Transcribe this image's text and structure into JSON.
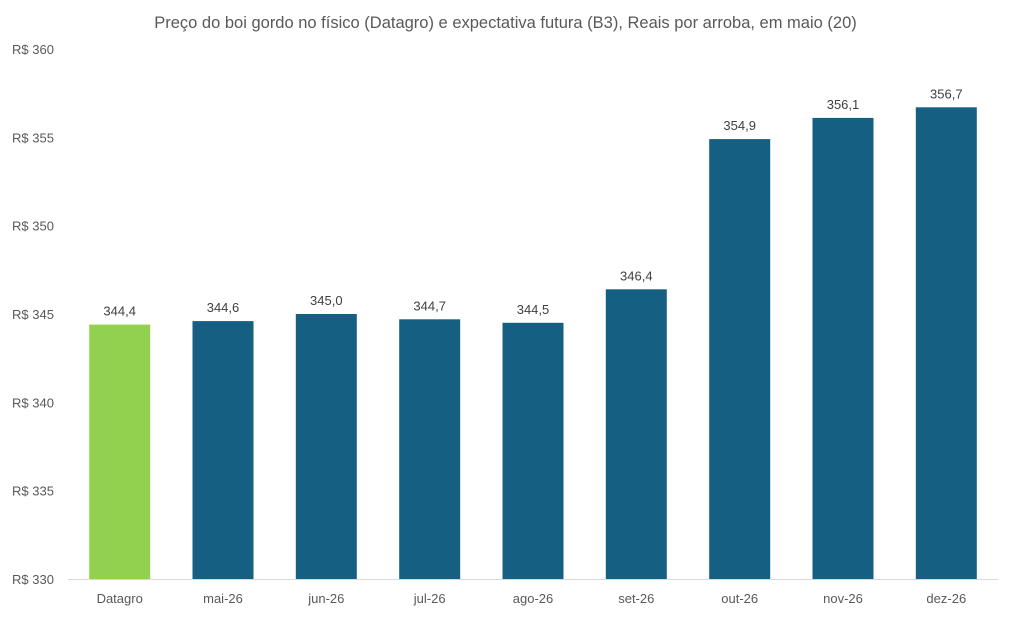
{
  "chart_data": {
    "type": "bar",
    "title": "Preço do boi gordo no físico (Datagro)  e expectativa futura (B3), Reais por arroba, em maio (20)",
    "categories": [
      "Datagro",
      "mai-26",
      "jun-26",
      "jul-26",
      "ago-26",
      "set-26",
      "out-26",
      "nov-26",
      "dez-26"
    ],
    "values": [
      344.4,
      344.6,
      345.0,
      344.7,
      344.5,
      346.4,
      354.9,
      356.1,
      356.7
    ],
    "data_labels": [
      "344,4",
      "344,6",
      "345,0",
      "344,7",
      "344,5",
      "346,4",
      "354,9",
      "356,1",
      "356,7"
    ],
    "ylim": [
      330,
      360
    ],
    "yticks": [
      330,
      335,
      340,
      345,
      350,
      355,
      360
    ],
    "ytick_labels": [
      "R$ 330",
      "R$ 335",
      "R$ 340",
      "R$ 345",
      "R$ 350",
      "R$ 355",
      "R$ 360"
    ],
    "xlabel": "",
    "ylabel": "",
    "grid": false,
    "legend": "none",
    "colors": {
      "highlight": "#92d050",
      "bars": "#156082",
      "axis": "#d9d9d9"
    },
    "highlight_index": 0
  }
}
